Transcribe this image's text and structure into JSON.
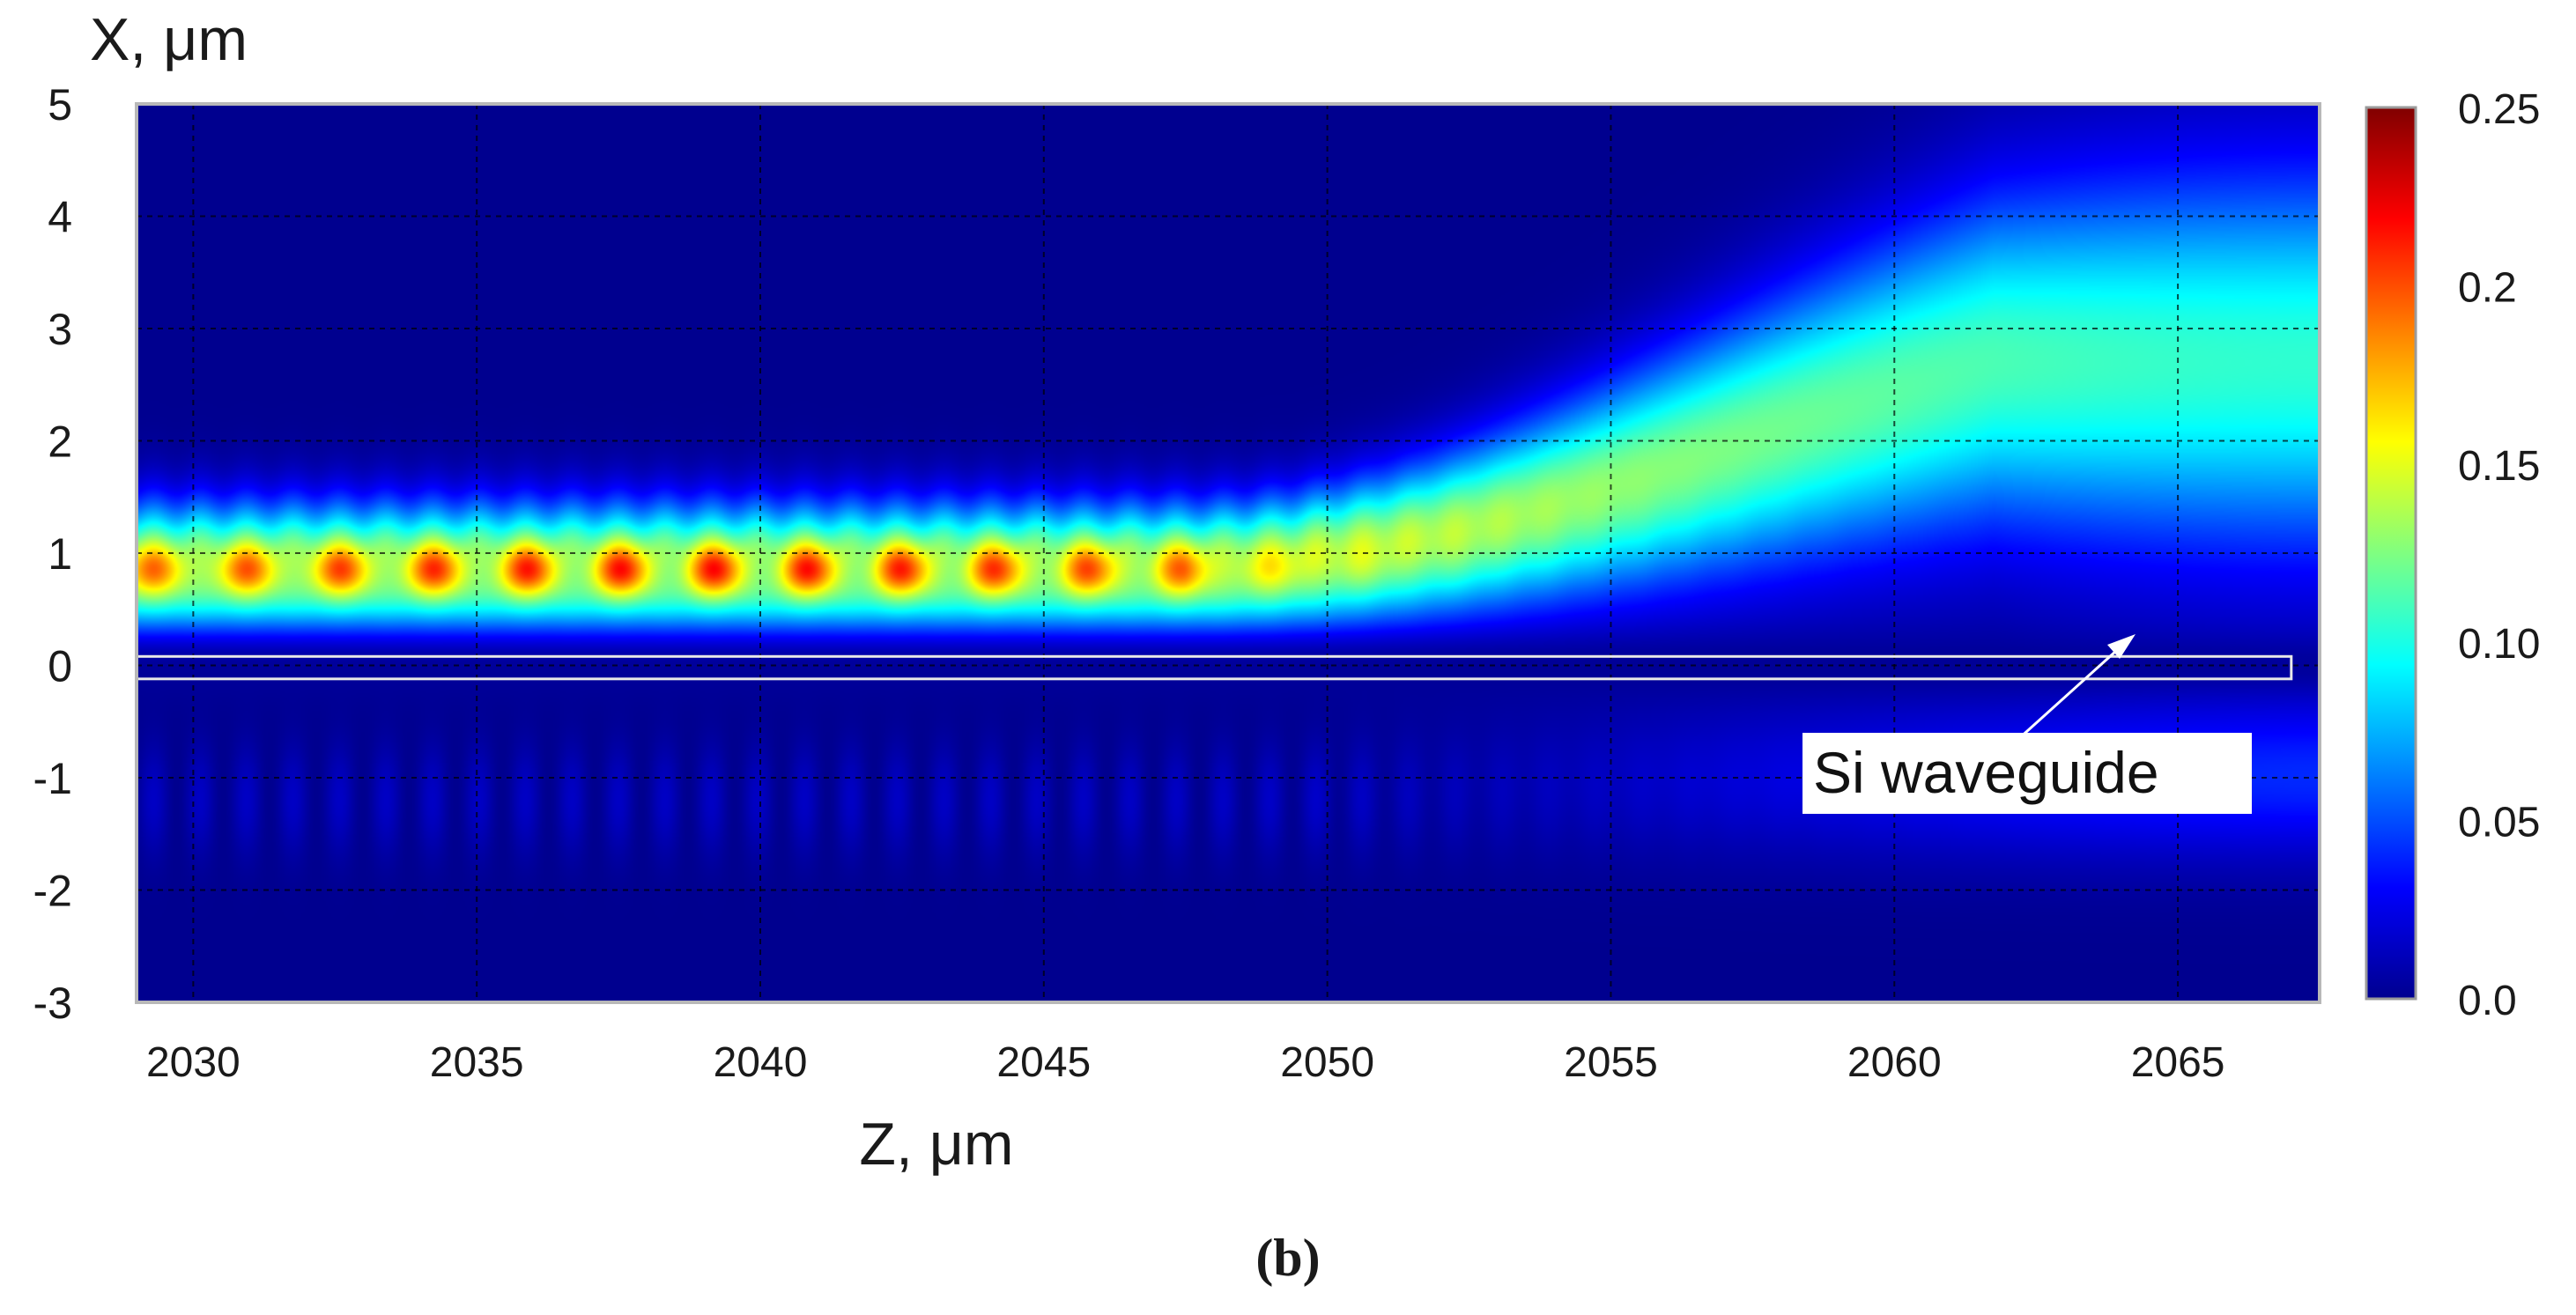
{
  "chart_data": {
    "type": "heatmap",
    "xlabel": "Z, μm",
    "ylabel": "X, μm",
    "xlim": [
      2029,
      2067.5
    ],
    "ylim": [
      -3,
      5
    ],
    "x_ticks": [
      "2030",
      "2035",
      "2040",
      "2045",
      "2050",
      "2055",
      "2060",
      "2065"
    ],
    "y_ticks": [
      "5",
      "4",
      "3",
      "2",
      "1",
      "0",
      "-1",
      "-2",
      "-3"
    ],
    "grid": "dashed",
    "colorbar": {
      "range": [
        0.0,
        0.25
      ],
      "ticks": [
        "0.25",
        "0.2",
        "0.15",
        "0.10",
        "0.05",
        "0.0"
      ],
      "colormap": "jet"
    },
    "field": {
      "description_values": "field intensity",
      "beam_center_x_start": 0.85,
      "beam_center_x_end": 2.7,
      "beam_rise_start_z": 2047.5,
      "interference_fade_z": 2047.5,
      "peak_intensity": 0.22,
      "end_intensity": 0.1
    },
    "annotation": {
      "text": "Si waveguide",
      "waveguide_x_range": [
        -0.12,
        0.08
      ],
      "waveguide_z_range": [
        2029,
        2067
      ]
    },
    "panel_label": "(b)",
    "colors": {
      "c0": "#00008f",
      "c1": "#0000ff",
      "c2": "#0080ff",
      "c3": "#00ffff",
      "c4": "#80ff80",
      "c5": "#ffff00",
      "c6": "#ff8000",
      "c7": "#ff0000",
      "c8": "#800000"
    }
  }
}
